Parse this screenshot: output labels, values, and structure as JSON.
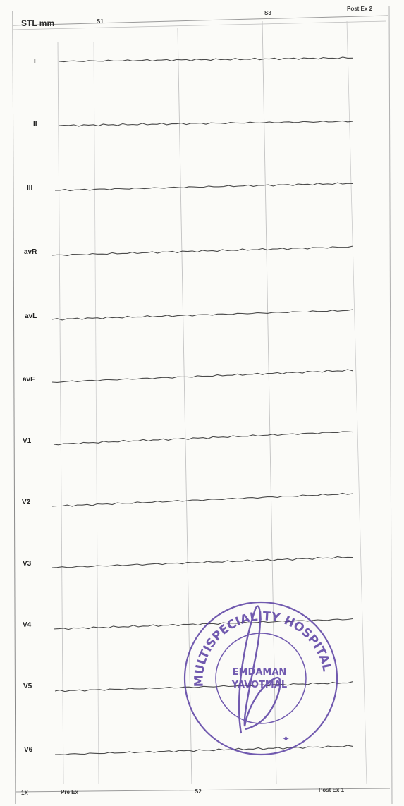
{
  "header": {
    "title": "STL mm",
    "stage_s1": "S1",
    "stage_s3": "S3",
    "stage_post_ex_2": "Post Ex 2"
  },
  "footer": {
    "stage_1x": "1X",
    "stage_pre_ex": "Pre Ex",
    "stage_s2": "S2",
    "stage_post_ex_1": "Post Ex 1"
  },
  "leads": [
    "I",
    "II",
    "III",
    "avR",
    "avL",
    "avF",
    "V1",
    "V2",
    "V3",
    "V4",
    "V5",
    "V6"
  ],
  "stamp": {
    "ring_text": "MULTISPECIALITY HOSPITAL",
    "center_line_1": "EMDAMAN",
    "center_line_2": "YAVOTMAL",
    "color": "#5a3fa3"
  },
  "colors": {
    "paper": "#fbfbf8",
    "grid": "#c4c4c4",
    "trace": "#4a4a4a"
  }
}
